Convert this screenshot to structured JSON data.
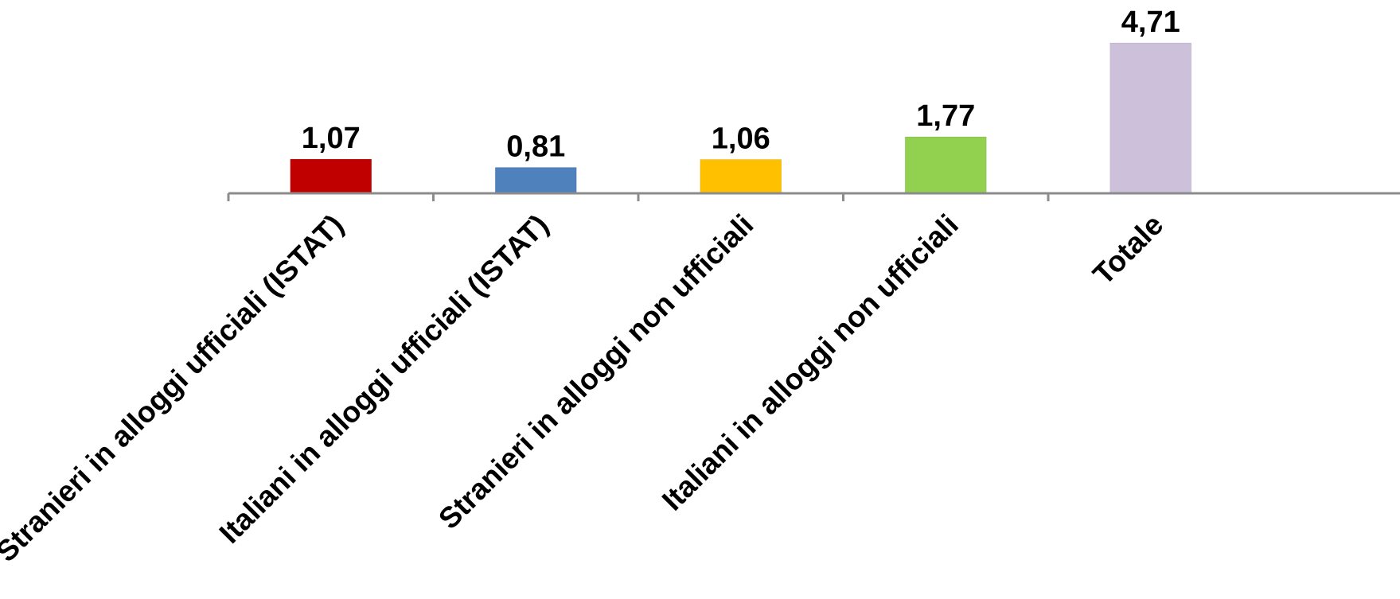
{
  "chart_data": {
    "type": "bar",
    "categories": [
      "Stranieri in alloggi ufficiali (ISTAT)",
      "Italiani in alloggi ufficiali (ISTAT)",
      "Stranieri in alloggi non ufficiali",
      "Italiani in alloggi non ufficiali",
      "Totale"
    ],
    "values": [
      1.07,
      0.81,
      1.06,
      1.77,
      4.71
    ],
    "value_labels": [
      "1,07",
      "0,81",
      "1,06",
      "1,77",
      "4,71"
    ],
    "colors": [
      "#c00000",
      "#4f81bd",
      "#ffc000",
      "#92d050",
      "#ccc0da"
    ],
    "title": "",
    "xlabel": "",
    "ylabel": "",
    "ylim": [
      0,
      4.71
    ],
    "grid": false,
    "legend": "none"
  }
}
